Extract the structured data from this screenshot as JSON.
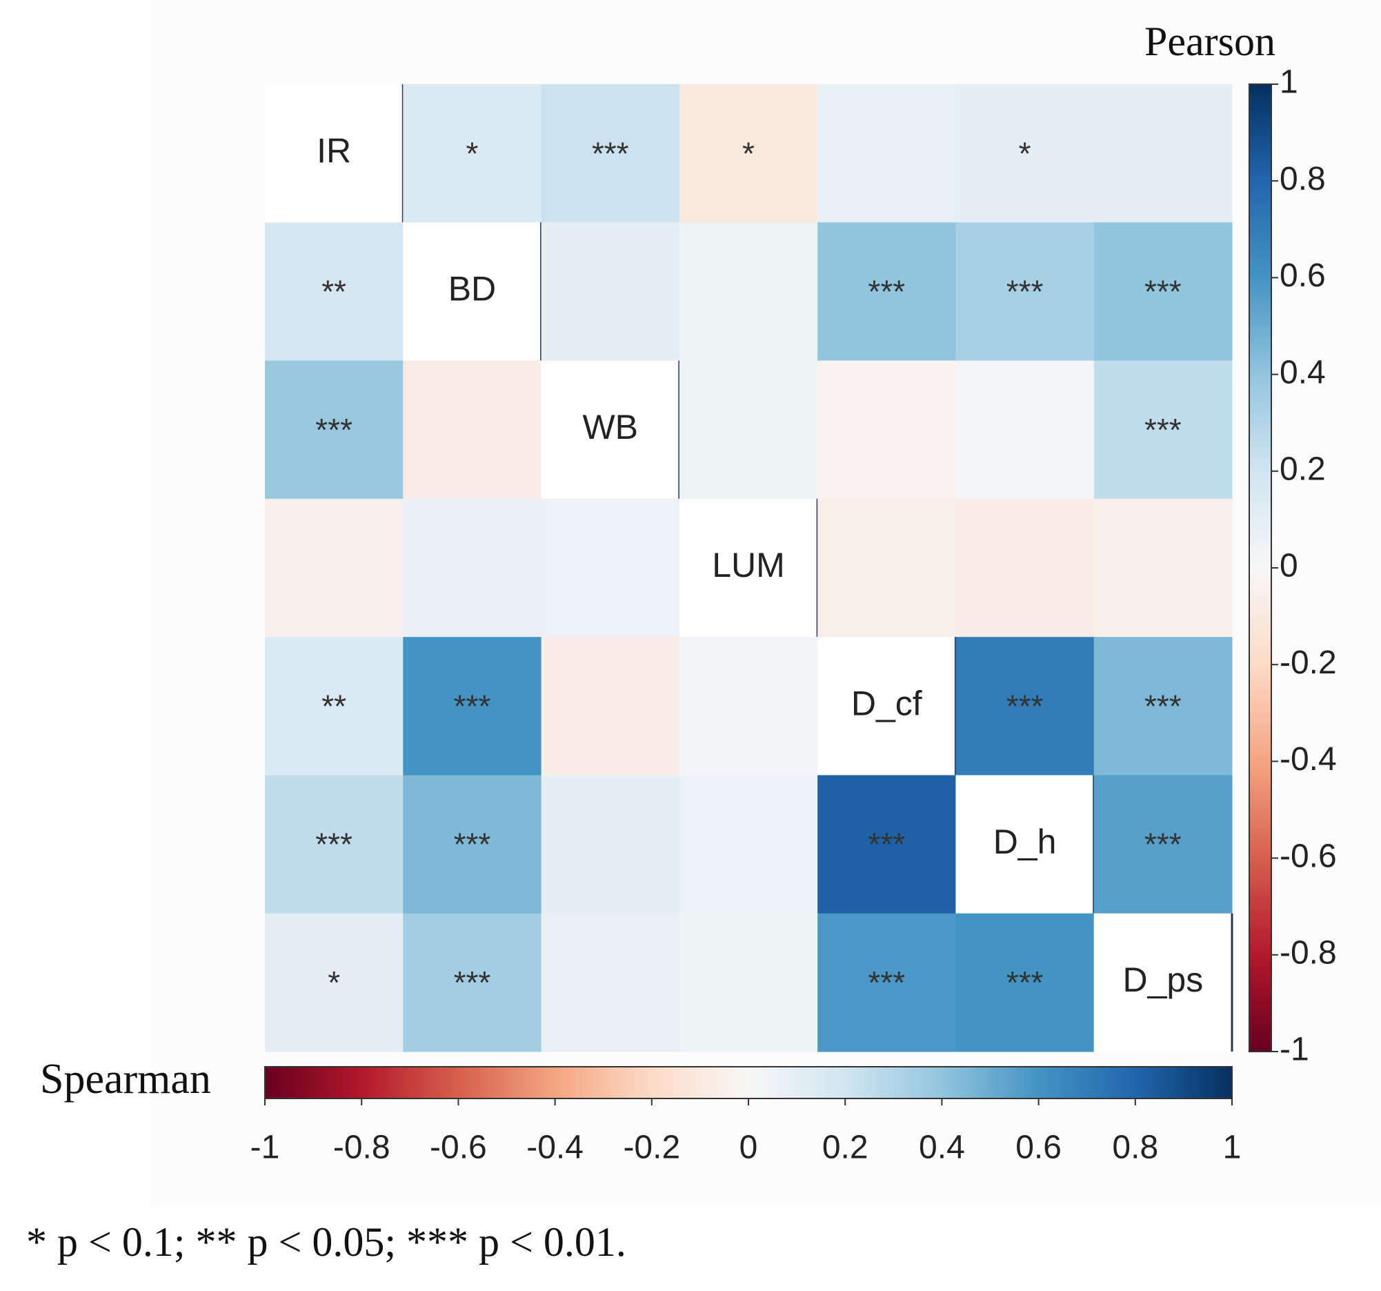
{
  "chart_data": {
    "type": "heatmap",
    "upper_label": "Pearson",
    "lower_label": "Spearman",
    "variables": [
      "IR",
      "BD",
      "WB",
      "LUM",
      "D_cf",
      "D_h",
      "D_ps"
    ],
    "values": [
      [
        null,
        0.15,
        0.22,
        -0.1,
        0.08,
        0.1,
        0.1
      ],
      [
        0.18,
        null,
        0.1,
        0.05,
        0.4,
        0.33,
        0.4
      ],
      [
        0.38,
        -0.08,
        null,
        0.05,
        -0.03,
        0.02,
        0.25
      ],
      [
        -0.05,
        0.07,
        0.06,
        null,
        -0.06,
        -0.08,
        -0.05
      ],
      [
        0.15,
        0.6,
        -0.07,
        0.03,
        null,
        0.7,
        0.45
      ],
      [
        0.25,
        0.45,
        0.1,
        0.06,
        0.82,
        null,
        0.55
      ],
      [
        0.1,
        0.35,
        0.08,
        0.05,
        0.58,
        0.6,
        null
      ]
    ],
    "significance": [
      [
        null,
        "*",
        "***",
        "*",
        null,
        "*",
        null
      ],
      [
        "**",
        null,
        null,
        null,
        "***",
        "***",
        "***"
      ],
      [
        "***",
        null,
        null,
        null,
        null,
        null,
        "***"
      ],
      [
        null,
        null,
        null,
        null,
        null,
        null,
        null
      ],
      [
        "**",
        "***",
        null,
        null,
        null,
        "***",
        "***"
      ],
      [
        "***",
        "***",
        null,
        null,
        "***",
        null,
        "***"
      ],
      [
        "*",
        "***",
        null,
        null,
        "***",
        "***",
        null
      ]
    ],
    "clim": [
      -1,
      1
    ],
    "cticks": [
      -1,
      -0.8,
      -0.6,
      -0.4,
      -0.2,
      0,
      0.2,
      0.4,
      0.6,
      0.8,
      1
    ],
    "colormap": [
      "#67001f",
      "#b2182b",
      "#d6604d",
      "#f4a582",
      "#fddbc7",
      "#f7f7f7",
      "#d1e5f0",
      "#92c5de",
      "#4393c3",
      "#2166ac",
      "#053061"
    ],
    "note": "* p < 0.1; ** p < 0.05; *** p < 0.01."
  }
}
